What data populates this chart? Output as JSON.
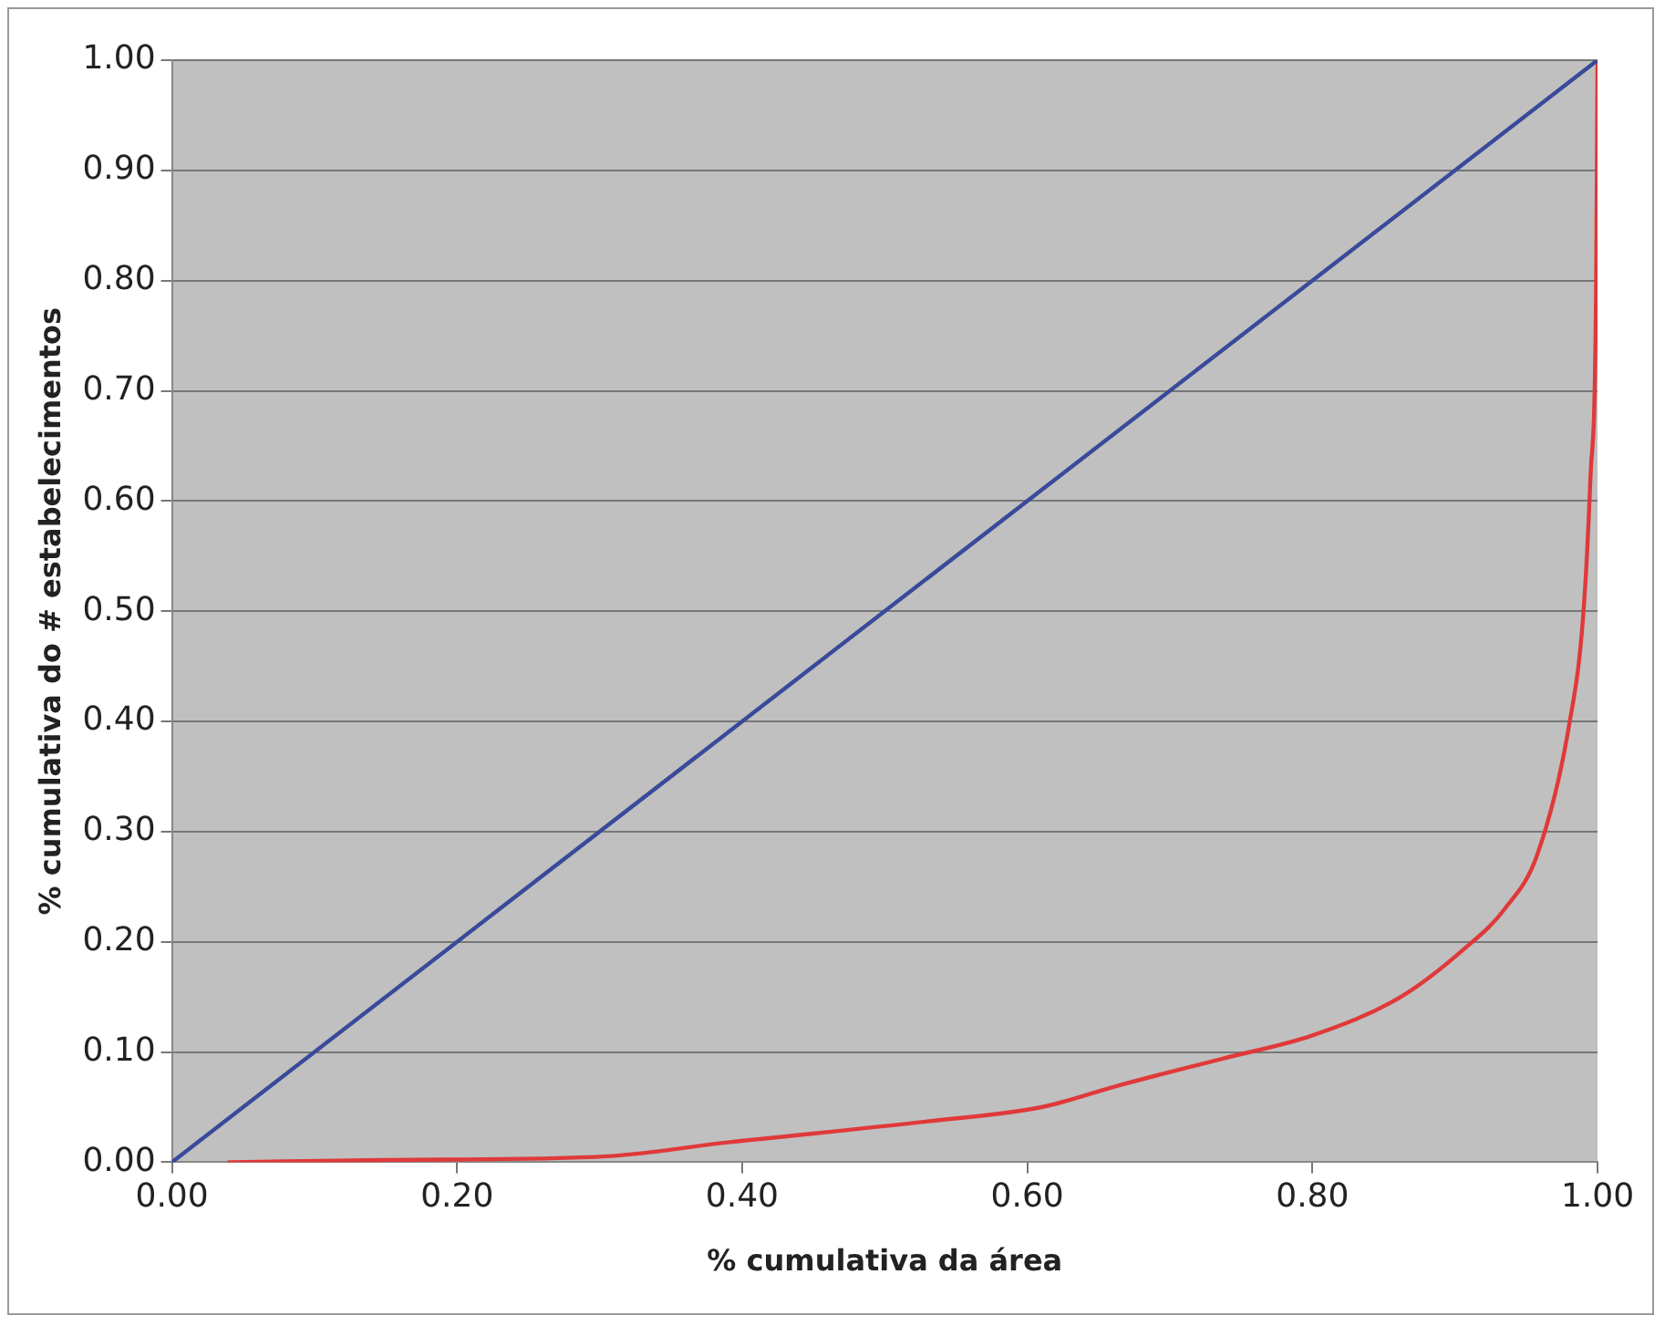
{
  "chart_data": {
    "type": "line",
    "xlabel": "% cumulativa da área",
    "ylabel": "% cumulativa do # estabelecimentos",
    "xlim": [
      0,
      1
    ],
    "xticks": [
      {
        "value": 0,
        "label": "0.00"
      },
      {
        "value": 0.2,
        "label": "0.20"
      },
      {
        "value": 0.4,
        "label": "0.40"
      },
      {
        "value": 0.6,
        "label": "0.60"
      },
      {
        "value": 0.8,
        "label": "0.80"
      },
      {
        "value": 1,
        "label": "1.00"
      }
    ],
    "ylim": [
      0,
      1
    ],
    "yticks": [
      {
        "value": 0,
        "label": "0.00"
      },
      {
        "value": 0.1,
        "label": "0.10"
      },
      {
        "value": 0.2,
        "label": "0.20"
      },
      {
        "value": 0.3,
        "label": "0.30"
      },
      {
        "value": 0.4,
        "label": "0.40"
      },
      {
        "value": 0.5,
        "label": "0.50"
      },
      {
        "value": 0.6,
        "label": "0.60"
      },
      {
        "value": 0.7,
        "label": "0.70"
      },
      {
        "value": 0.8,
        "label": "0.80"
      },
      {
        "value": 0.9,
        "label": "0.90"
      },
      {
        "value": 1,
        "label": "1.00"
      }
    ],
    "grid": "y",
    "legend": false,
    "marker": "none",
    "series": [
      {
        "color": "#3a4a9a",
        "x": [
          0,
          1
        ],
        "values": [
          0,
          1
        ]
      },
      {
        "color": "#e0393a",
        "x": [
          0.04,
          0.15,
          0.3,
          0.39,
          0.53,
          0.61,
          0.665,
          0.737,
          0.8,
          0.862,
          0.906,
          0.935,
          0.958,
          0.98,
          0.99,
          0.995,
          0.999,
          1
        ],
        "values": [
          0,
          0.002,
          0.005,
          0.018,
          0.037,
          0.05,
          0.07,
          0.094,
          0.115,
          0.15,
          0.193,
          0.23,
          0.28,
          0.396,
          0.497,
          0.62,
          0.79,
          1
        ]
      }
    ]
  }
}
